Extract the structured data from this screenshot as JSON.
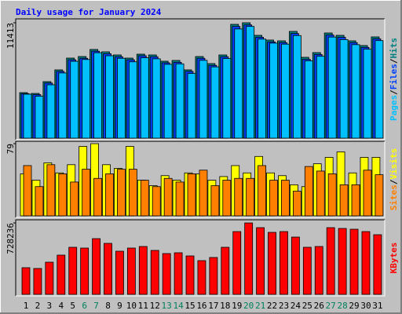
{
  "title": "Daily usage for January 2024",
  "chart_data": [
    {
      "type": "bar",
      "ylim": [
        0,
        11413
      ],
      "yticks": [
        11413
      ],
      "legend_separator": "/",
      "series": [
        {
          "name": "Hits",
          "color": "#008080",
          "values": [
            4503,
            4425,
            5590,
            6755,
            7919,
            8075,
            8773,
            8540,
            8230,
            7919,
            8307,
            8230,
            7609,
            7686,
            6755,
            8075,
            7376,
            8230,
            11258,
            11413,
            10171,
            9705,
            9627,
            10559,
            7997,
            8463,
            10404,
            10171,
            9627,
            9161,
            10016
          ]
        },
        {
          "name": "Files",
          "color": "#0040ff",
          "values": [
            4400,
            4300,
            5450,
            6600,
            7750,
            7900,
            8600,
            8350,
            8050,
            7750,
            8150,
            8050,
            7450,
            7500,
            6600,
            7900,
            7200,
            8050,
            11050,
            11200,
            9980,
            9520,
            9450,
            10350,
            7800,
            8280,
            10200,
            9980,
            9450,
            8980,
            9820
          ]
        },
        {
          "name": "Pages",
          "color": "#00c0ff",
          "values": [
            4350,
            4150,
            5280,
            6450,
            7600,
            7780,
            8450,
            8150,
            7900,
            7550,
            7950,
            7850,
            7300,
            7350,
            6400,
            7700,
            7050,
            7880,
            10800,
            11050,
            9800,
            9400,
            9300,
            10150,
            7650,
            8100,
            10000,
            9750,
            9250,
            8800,
            9650
          ]
        }
      ]
    },
    {
      "type": "bar",
      "ylim": [
        0,
        79
      ],
      "yticks": [
        79
      ],
      "legend_separator": "/",
      "series": [
        {
          "name": "Visits",
          "color": "#ffff00",
          "values": [
            46,
            39,
            58,
            47,
            56,
            76,
            79,
            56,
            52,
            76,
            39,
            33,
            44,
            39,
            47,
            46,
            39,
            43,
            55,
            47,
            65,
            47,
            44,
            34,
            32,
            57,
            64,
            70,
            47,
            64,
            64
          ]
        },
        {
          "name": "Sites",
          "color": "#ff8000",
          "values": [
            55,
            32,
            56,
            46,
            37,
            51,
            41,
            46,
            51,
            51,
            39,
            32,
            41,
            37,
            46,
            50,
            33,
            39,
            41,
            41,
            55,
            39,
            39,
            27,
            54,
            49,
            46,
            34,
            34,
            50,
            45
          ]
        }
      ]
    },
    {
      "type": "bar",
      "ylim": [
        0,
        728236
      ],
      "yticks": [
        728236
      ],
      "categories": [
        "1",
        "2",
        "3",
        "4",
        "5",
        "6",
        "7",
        "8",
        "9",
        "10",
        "11",
        "12",
        "13",
        "14",
        "15",
        "16",
        "17",
        "18",
        "19",
        "20",
        "21",
        "22",
        "23",
        "24",
        "25",
        "26",
        "27",
        "28",
        "29",
        "30",
        "31"
      ],
      "category_colors": [
        "#000000",
        "#000000",
        "#000000",
        "#000000",
        "#000000",
        "#00805c",
        "#00805c",
        "#000000",
        "#000000",
        "#000000",
        "#000000",
        "#000000",
        "#00805c",
        "#00805c",
        "#000000",
        "#000000",
        "#000000",
        "#000000",
        "#000000",
        "#00805c",
        "#00805c",
        "#000000",
        "#000000",
        "#000000",
        "#000000",
        "#000000",
        "#00805c",
        "#00805c",
        "#000000",
        "#000000",
        "#000000"
      ],
      "series": [
        {
          "name": "KBytes",
          "color": "#ff0000",
          "values": [
            272088,
            264086,
            328106,
            400130,
            480156,
            472153,
            568184,
            520169,
            440143,
            472153,
            488158,
            448140,
            416135,
            424138,
            392127,
            344112,
            376122,
            480156,
            640208,
            728236,
            680220,
            632205,
            640208,
            584190,
            480156,
            488158,
            680220,
            672218,
            664214,
            640208,
            608195
          ]
        }
      ]
    }
  ]
}
